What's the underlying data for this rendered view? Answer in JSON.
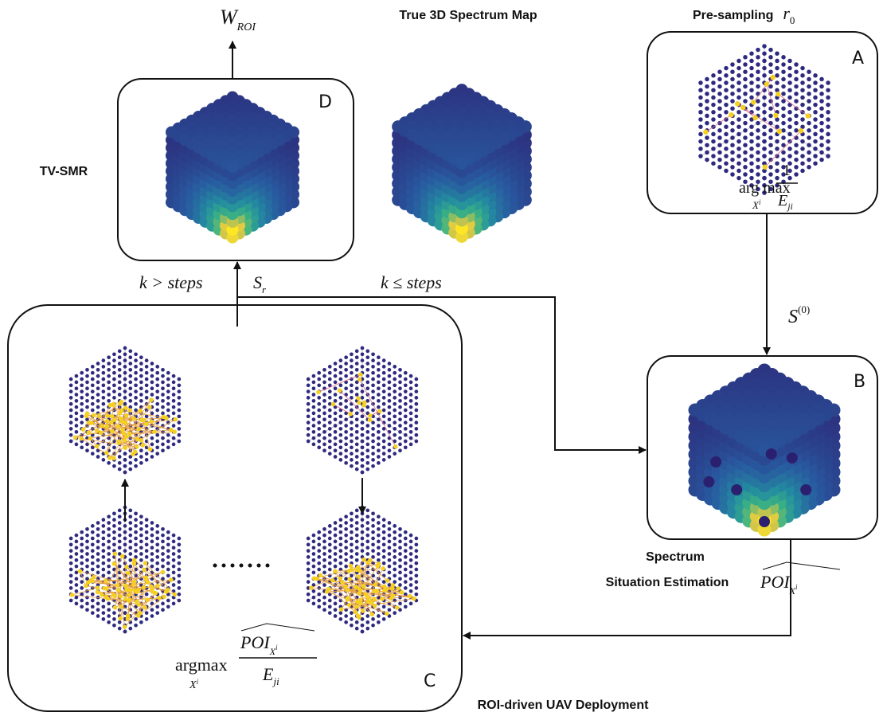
{
  "labels": {
    "w_roi": {
      "main": "W",
      "sub": "ROI"
    },
    "true_map_title": "True 3D Spectrum Map",
    "pre_sampling": {
      "text": "Pre-sampling",
      "var": "r",
      "sub": "0"
    },
    "tv_smr": "TV-SMR",
    "box_letters": {
      "a": "A",
      "b": "B",
      "c": "C",
      "d": "D"
    },
    "formula_a": {
      "op": "arg max",
      "var": "X",
      "sup": "i",
      "num": "1",
      "den": "E",
      "den_sub": "ji"
    },
    "k_greater": "k > steps",
    "s_r": {
      "main": "S",
      "sub": "r"
    },
    "k_leq": "k ≤ steps",
    "s_0": {
      "main": "S",
      "sup": "(0)"
    },
    "estimation": {
      "line1": "Spectrum",
      "line2": "Situation Estimation"
    },
    "poi_hat": {
      "main": "POI",
      "var": "X",
      "sup": "i"
    },
    "formula_c": {
      "op": "argmax",
      "var": "X",
      "sup": "i",
      "num": "POI",
      "num_var": "X",
      "num_sup": "i",
      "den": "E",
      "den_sub": "ji"
    },
    "deployment": "ROI-driven UAV Deployment"
  }
}
